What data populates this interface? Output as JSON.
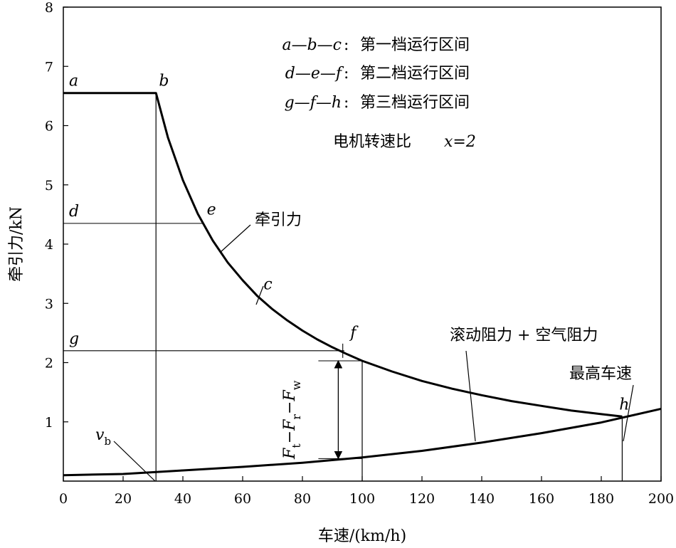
{
  "chart_data": {
    "type": "line",
    "xlabel": "车速/(km/h)",
    "ylabel": "牵引力/kN",
    "xlim": [
      0,
      200
    ],
    "ylim": [
      0,
      8
    ],
    "x_ticks": [
      0,
      20,
      40,
      60,
      80,
      100,
      120,
      140,
      160,
      180,
      200
    ],
    "y_ticks": [
      1,
      2,
      3,
      4,
      5,
      6,
      7,
      8
    ],
    "grid": false,
    "series": [
      {
        "name": "牵引力",
        "x": [
          0,
          31,
          35,
          40,
          45,
          50,
          55,
          60,
          65,
          70,
          75,
          80,
          85,
          90,
          95,
          100,
          110,
          120,
          130,
          140,
          150,
          160,
          170,
          180,
          187
        ],
        "y": [
          6.55,
          6.55,
          5.8,
          5.08,
          4.51,
          4.06,
          3.69,
          3.39,
          3.12,
          2.9,
          2.71,
          2.54,
          2.39,
          2.26,
          2.14,
          2.03,
          1.85,
          1.69,
          1.56,
          1.45,
          1.35,
          1.27,
          1.19,
          1.13,
          1.09
        ]
      },
      {
        "name": "滚动阻力 + 空气阻力",
        "x": [
          0,
          20,
          40,
          60,
          80,
          100,
          120,
          140,
          160,
          180,
          200
        ],
        "y": [
          0.1,
          0.12,
          0.18,
          0.24,
          0.31,
          0.4,
          0.51,
          0.65,
          0.81,
          0.99,
          1.22
        ]
      }
    ],
    "gear_levels": [
      {
        "label": "a",
        "y": 6.55,
        "x_end": 31
      },
      {
        "label": "d",
        "y": 4.35,
        "x_end": 47
      },
      {
        "label": "g",
        "y": 2.2,
        "x_end": 94
      }
    ],
    "point_labels": [
      {
        "label": "b",
        "x": 32,
        "y": 6.55
      },
      {
        "label": "e",
        "x": 48,
        "y": 4.38
      },
      {
        "label": "c",
        "x": 67,
        "y": 3.12
      },
      {
        "label": "f",
        "x": 96,
        "y": 2.3
      },
      {
        "label": "h",
        "x": 186,
        "y": 1.09
      }
    ],
    "vertical_lines": [
      {
        "x": 31,
        "y_top": 6.55
      },
      {
        "x": 100,
        "y_top": 2.03
      },
      {
        "x": 187,
        "y_top": 1.09
      }
    ],
    "legend_lines": [
      {
        "seq": "a—b—c",
        "text": "第一档运行区间"
      },
      {
        "seq": "d—e—f",
        "text": "第二档运行区间"
      },
      {
        "seq": "g—f—h",
        "text": "第三档运行区间"
      }
    ],
    "ratio_note": {
      "text": "电机转速比",
      "var": "x=2"
    },
    "annotations": {
      "traction": "牵引力",
      "resistance": "滚动阻力 + 空气阻力",
      "max_speed": "最高车速",
      "vb": "v",
      "vb_sub": "b",
      "force_diff_parts": [
        "F",
        "t",
        "−F",
        "r",
        "−F",
        "w"
      ],
      "force_diff_arrow": {
        "x": 92,
        "y_from": 0.38,
        "y_to": 2.03
      }
    }
  }
}
